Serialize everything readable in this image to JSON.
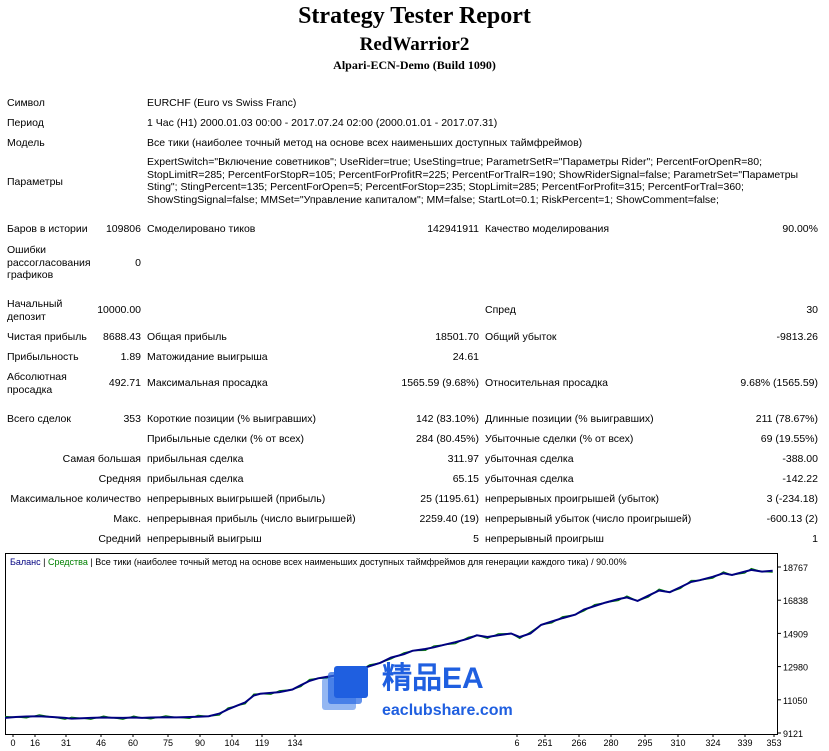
{
  "header": {
    "title": "Strategy Tester Report",
    "expert": "RedWarrior2",
    "server": "Alpari-ECN-Demo (Build 1090)"
  },
  "info": {
    "symbol_label": "Символ",
    "symbol_value": "EURCHF (Euro vs Swiss Franc)",
    "period_label": "Период",
    "period_value": "1 Час (H1) 2000.01.03 00:00 - 2017.07.24 02:00 (2000.01.01 - 2017.07.31)",
    "model_label": "Модель",
    "model_value": "Все тики (наиболее точный метод на основе всех наименьших доступных таймфреймов)",
    "params_label": "Параметры",
    "params_value": "ExpertSwitch=\"Включение советников\"; UseRider=true; UseSting=true; ParametrSetR=\"Параметры Rider\"; PercentForOpenR=80; StopLimitR=285; PercentForStopR=105; PercentForProfitR=225; PercentForTralR=190; ShowRiderSignal=false; ParametrSet=\"Параметры Sting\"; StingPercent=135; PercentForOpen=5; PercentForStop=235; StopLimit=285; PercentForProfit=315; PercentForTral=360; ShowStingSignal=false; MMSet=\"Управление капиталом\"; MM=false; StartLot=0.1; RiskPercent=1; ShowComment=false;"
  },
  "stats": {
    "bars_label": "Баров в истории",
    "bars_value": "109806",
    "ticks_label": "Смоделировано тиков",
    "ticks_value": "142941911",
    "quality_label": "Качество моделирования",
    "quality_value": "90.00%",
    "errors_label": "Ошибки рассогласования графиков",
    "errors_value": "0",
    "deposit_label": "Начальный депозит",
    "deposit_value": "10000.00",
    "spread_label": "Спред",
    "spread_value": "30",
    "net_label": "Чистая прибыль",
    "net_value": "8688.43",
    "gross_profit_label": "Общая прибыль",
    "gross_profit_value": "18501.70",
    "gross_loss_label": "Общий убыток",
    "gross_loss_value": "-9813.26",
    "pf_label": "Прибыльность",
    "pf_value": "1.89",
    "payoff_label": "Матожидание выигрыша",
    "payoff_value": "24.61",
    "abs_dd_label": "Абсолютная просадка",
    "abs_dd_value": "492.71",
    "max_dd_label": "Максимальная просадка",
    "max_dd_value": "1565.59 (9.68%)",
    "rel_dd_label": "Относительная просадка",
    "rel_dd_value": "9.68% (1565.59)",
    "total_label": "Всего сделок",
    "total_value": "353",
    "short_label": "Короткие позиции (% выигравших)",
    "short_value": "142 (83.10%)",
    "long_label": "Длинные позиции (% выигравших)",
    "long_value": "211 (78.67%)",
    "win_trades_label": "Прибыльные сделки (% от всех)",
    "win_trades_value": "284 (80.45%)",
    "loss_trades_label": "Убыточные сделки (% от всех)",
    "loss_trades_value": "69 (19.55%)",
    "largest_label": "Самая большая",
    "largest_win_label": "прибыльная сделка",
    "largest_win_value": "311.97",
    "largest_loss_label": "убыточная сделка",
    "largest_loss_value": "-388.00",
    "average_label": "Средняя",
    "avg_win_label": "прибыльная сделка",
    "avg_win_value": "65.15",
    "avg_loss_label": "убыточная сделка",
    "avg_loss_value": "-142.22",
    "max_count_label": "Максимальное количество",
    "cons_wins_label": "непрерывных выигрышей (прибыль)",
    "cons_wins_value": "25 (1195.61)",
    "cons_losses_label": "непрерывных проигрышей (убыток)",
    "cons_losses_value": "3 (-234.18)",
    "max_label": "Макс.",
    "cons_profit_label": "непрерывная прибыль (число выигрышей)",
    "cons_profit_value": "2259.40 (19)",
    "cons_loss_label": "непрерывный убыток (число проигрышей)",
    "cons_loss_value": "-600.13 (2)",
    "avg2_label": "Средний",
    "avg_cons_wins_label": "непрерывный выигрыш",
    "avg_cons_wins_value": "5",
    "avg_cons_losses_label": "непрерывный проигрыш",
    "avg_cons_losses_value": "1"
  },
  "watermark": {
    "brand": "精品EA",
    "site": "eaclubshare.com"
  },
  "chart_data": {
    "type": "line",
    "legend": {
      "balance": "Баланс",
      "sep1": " | ",
      "equity": "Средства",
      "sep2": " | ",
      "description": "Все тики (наиболее точный метод на основе всех наименьших доступных таймфреймов для генерации каждого тика) / 90.00%"
    },
    "y_ticks": [
      "18767",
      "16838",
      "14909",
      "12980",
      "11050",
      "9121"
    ],
    "x_ticks": [
      "0",
      "16",
      "31",
      "46",
      "60",
      "75",
      "90",
      "104",
      "119",
      "134",
      "6",
      "251",
      "266",
      "280",
      "295",
      "310",
      "324",
      "339",
      "353"
    ],
    "ylim": [
      9121,
      18767
    ],
    "xlim": [
      0,
      360
    ],
    "colors": {
      "balance": "#000080",
      "equity": "#008000",
      "frame": "#000000"
    },
    "series": [
      {
        "name": "Баланс",
        "x": [
          0,
          5,
          10,
          16,
          22,
          28,
          31,
          36,
          40,
          46,
          50,
          55,
          60,
          64,
          68,
          75,
          80,
          86,
          90,
          95,
          100,
          104,
          108,
          112,
          116,
          119,
          124,
          128,
          134,
          138,
          142,
          146,
          150,
          156,
          160,
          165,
          170,
          175,
          180,
          186,
          190,
          196,
          200,
          205,
          210,
          216,
          220,
          225,
          230,
          236,
          240,
          245,
          250,
          255,
          260,
          266,
          270,
          275,
          280,
          286,
          290,
          295,
          300,
          305,
          310,
          315,
          320,
          324,
          330,
          335,
          339,
          345,
          348,
          353,
          358
        ],
        "values": [
          10000,
          10050,
          10080,
          10100,
          10050,
          10000,
          9960,
          9980,
          10000,
          10020,
          10010,
          10000,
          10020,
          10000,
          10020,
          10040,
          10030,
          10050,
          10060,
          10100,
          10250,
          10500,
          10700,
          10900,
          11300,
          11400,
          11450,
          11500,
          11650,
          11900,
          12150,
          12300,
          12380,
          12500,
          12650,
          12800,
          13000,
          13200,
          13500,
          13700,
          13900,
          14000,
          14100,
          14250,
          14400,
          14600,
          14800,
          14700,
          14800,
          14900,
          14700,
          14900,
          15400,
          15600,
          15800,
          16000,
          16300,
          16500,
          16700,
          16900,
          17000,
          16800,
          17100,
          17400,
          17300,
          17600,
          17900,
          18000,
          18200,
          18400,
          18300,
          18500,
          18600,
          18500,
          18550
        ]
      }
    ]
  }
}
